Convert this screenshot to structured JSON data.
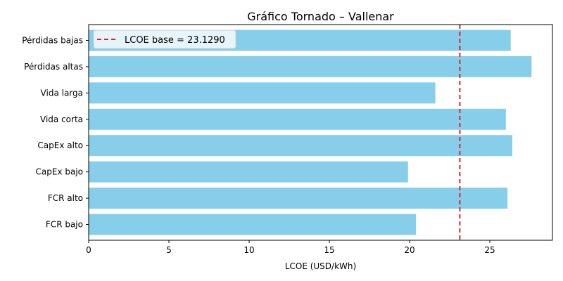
{
  "chart_data": {
    "type": "bar",
    "orientation": "horizontal",
    "title": "Gráfico Tornado – Vallenar",
    "xlabel": "LCOE (USD/kWh)",
    "ylabel": "",
    "xlim": [
      0,
      28.9
    ],
    "xticks": [
      0,
      5,
      10,
      15,
      20,
      25
    ],
    "categories": [
      "Pérdidas bajas",
      "Pérdidas altas",
      "Vida larga",
      "Vida corta",
      "CapEx alto",
      "CapEx bajo",
      "FCR alto",
      "FCR bajo"
    ],
    "values": [
      26.3,
      27.6,
      21.6,
      26.0,
      26.4,
      19.9,
      26.1,
      20.4
    ],
    "bar_color": "#87ceeb",
    "reference_line": {
      "value": 23.129,
      "label": "LCOE base = 23.1290",
      "color": "#d62728",
      "style": "dashed"
    },
    "legend": {
      "position": "top-left"
    },
    "grid": false
  }
}
